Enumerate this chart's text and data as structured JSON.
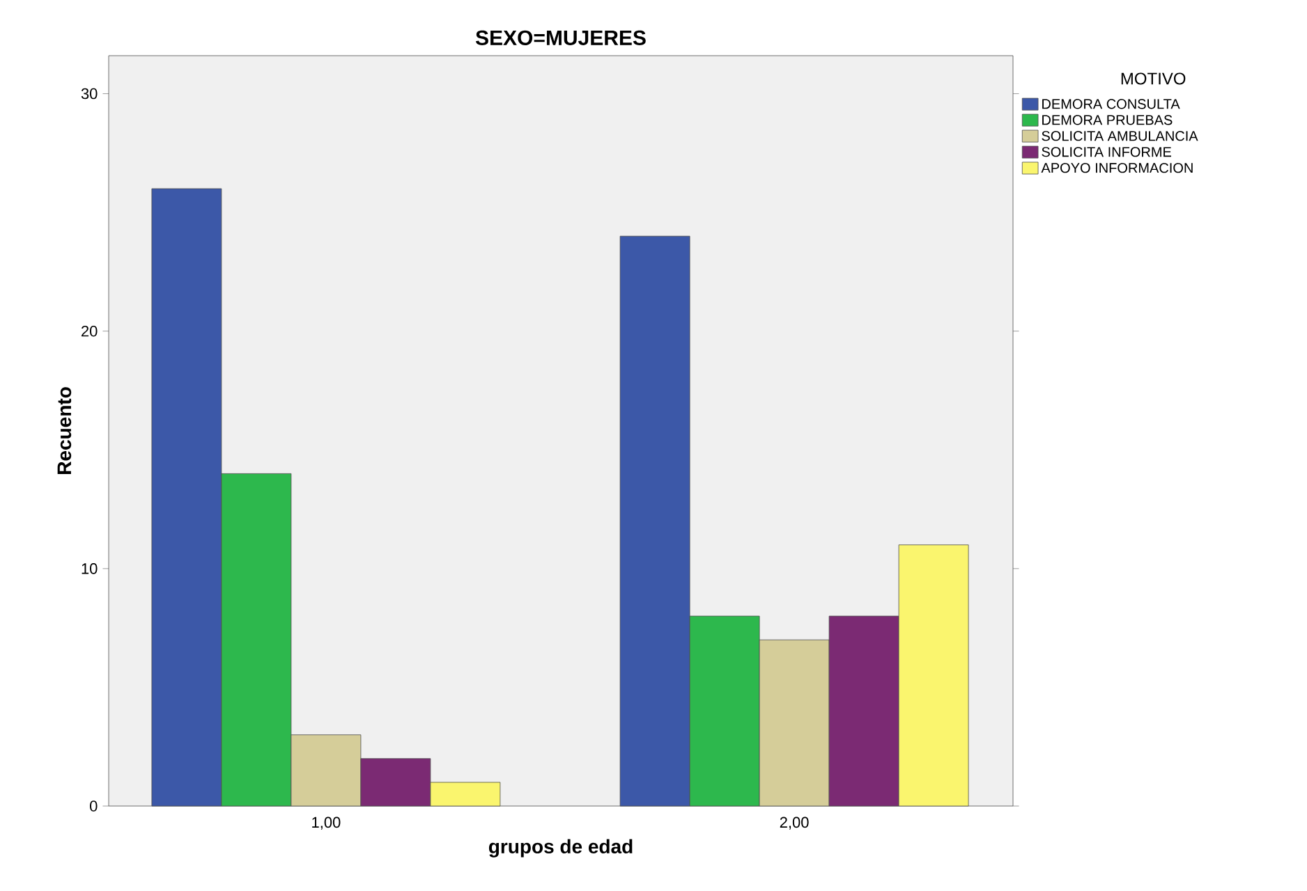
{
  "chart_data": {
    "type": "bar",
    "title": "SEXO=MUJERES",
    "xlabel": "grupos de edad",
    "ylabel": "Recuento",
    "legend_title": "MOTIVO",
    "categories": [
      "1,00",
      "2,00"
    ],
    "series": [
      {
        "name": "DEMORA CONSULTA",
        "color": "#3c58a8",
        "values": [
          26,
          24
        ]
      },
      {
        "name": "DEMORA PRUEBAS",
        "color": "#2db84d",
        "values": [
          14,
          8
        ]
      },
      {
        "name": "SOLICITA AMBULANCIA",
        "color": "#d5cd99",
        "values": [
          3,
          7
        ]
      },
      {
        "name": "SOLICITA INFORME",
        "color": "#7b2a73",
        "values": [
          2,
          8
        ]
      },
      {
        "name": "APOYO INFORMACION",
        "color": "#faf56e",
        "values": [
          1,
          11
        ]
      }
    ],
    "ylim": [
      0,
      31.6
    ],
    "yticks": [
      0,
      10,
      20,
      30
    ],
    "grid": false,
    "legend": "right"
  }
}
